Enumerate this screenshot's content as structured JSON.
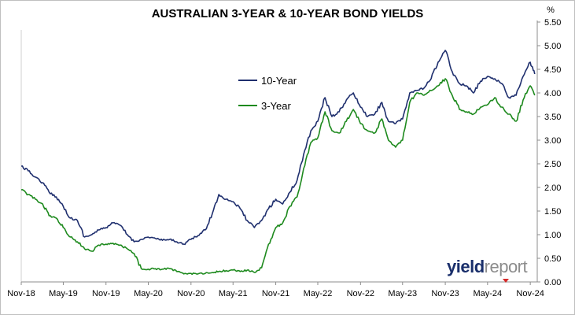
{
  "title": "AUSTRALIAN 3-YEAR & 10-YEAR BOND YIELDS",
  "branding": {
    "logo_part1": "yield",
    "logo_part2": "report"
  },
  "chart_data": {
    "type": "line",
    "title": "AUSTRALIAN 3-YEAR & 10-YEAR BOND YIELDS",
    "xlabel": "",
    "ylabel": "%",
    "xlim": [
      "2018-11-01",
      "2024-12-01"
    ],
    "ylim": [
      0,
      5.5
    ],
    "y_ticks": [
      "0.00",
      "0.50",
      "1.00",
      "1.50",
      "2.00",
      "2.50",
      "3.00",
      "3.50",
      "4.00",
      "4.50",
      "5.00",
      "5.50"
    ],
    "x_ticks": [
      "Nov-18",
      "May-19",
      "Nov-19",
      "May-20",
      "Nov-20",
      "May-21",
      "Nov-21",
      "May-22",
      "Nov-22",
      "May-23",
      "Nov-23",
      "May-24",
      "Nov-24"
    ],
    "x_tick_dates": [
      "2018-11-01",
      "2019-05-01",
      "2019-11-01",
      "2020-05-01",
      "2020-11-01",
      "2021-05-01",
      "2021-11-01",
      "2022-05-01",
      "2022-11-01",
      "2023-05-01",
      "2023-11-01",
      "2024-05-01",
      "2024-11-01"
    ],
    "y_axis_position": "right",
    "grid": false,
    "legend_position": "upper-middle",
    "series": [
      {
        "name": "10-Year",
        "color": "#1f2f6e",
        "x": [
          "2018-11-01",
          "2018-12-01",
          "2019-01-01",
          "2019-02-01",
          "2019-03-01",
          "2019-04-01",
          "2019-05-01",
          "2019-06-01",
          "2019-07-01",
          "2019-08-01",
          "2019-09-01",
          "2019-10-01",
          "2019-11-01",
          "2019-12-01",
          "2020-01-01",
          "2020-02-01",
          "2020-03-01",
          "2020-04-01",
          "2020-05-01",
          "2020-06-01",
          "2020-07-01",
          "2020-08-01",
          "2020-09-01",
          "2020-10-01",
          "2020-11-01",
          "2020-12-01",
          "2021-01-01",
          "2021-02-01",
          "2021-03-01",
          "2021-04-01",
          "2021-05-01",
          "2021-06-01",
          "2021-07-01",
          "2021-08-01",
          "2021-09-01",
          "2021-10-01",
          "2021-11-01",
          "2021-12-01",
          "2022-01-01",
          "2022-02-01",
          "2022-03-01",
          "2022-04-01",
          "2022-05-01",
          "2022-06-01",
          "2022-07-01",
          "2022-08-01",
          "2022-09-01",
          "2022-10-01",
          "2022-11-01",
          "2022-12-01",
          "2023-01-01",
          "2023-02-01",
          "2023-03-01",
          "2023-04-01",
          "2023-05-01",
          "2023-06-01",
          "2023-07-01",
          "2023-08-01",
          "2023-09-01",
          "2023-10-01",
          "2023-11-01",
          "2023-12-01",
          "2024-01-01",
          "2024-02-01",
          "2024-03-01",
          "2024-04-01",
          "2024-05-01",
          "2024-06-01",
          "2024-07-01",
          "2024-08-01",
          "2024-09-01",
          "2024-10-01",
          "2024-11-01",
          "2024-11-20"
        ],
        "values": [
          2.45,
          2.35,
          2.22,
          2.1,
          1.9,
          1.8,
          1.6,
          1.35,
          1.3,
          0.95,
          1.0,
          1.1,
          1.15,
          1.25,
          1.2,
          1.0,
          0.85,
          0.9,
          0.95,
          0.92,
          0.88,
          0.9,
          0.85,
          0.8,
          0.9,
          0.98,
          1.1,
          1.45,
          1.85,
          1.75,
          1.7,
          1.55,
          1.3,
          1.15,
          1.3,
          1.55,
          1.75,
          1.65,
          1.9,
          2.15,
          2.7,
          3.2,
          3.4,
          3.9,
          3.5,
          3.6,
          3.85,
          4.0,
          3.7,
          3.5,
          3.55,
          3.8,
          3.4,
          3.35,
          3.45,
          4.0,
          4.05,
          4.1,
          4.3,
          4.65,
          4.9,
          4.45,
          4.2,
          4.15,
          4.0,
          4.25,
          4.35,
          4.3,
          4.2,
          3.9,
          3.95,
          4.35,
          4.65,
          4.4
        ]
      },
      {
        "name": "3-Year",
        "color": "#1e8a1e",
        "x": [
          "2018-11-01",
          "2018-12-01",
          "2019-01-01",
          "2019-02-01",
          "2019-03-01",
          "2019-04-01",
          "2019-05-01",
          "2019-06-01",
          "2019-07-01",
          "2019-08-01",
          "2019-09-01",
          "2019-10-01",
          "2019-11-01",
          "2019-12-01",
          "2020-01-01",
          "2020-02-01",
          "2020-03-01",
          "2020-04-01",
          "2020-05-01",
          "2020-06-01",
          "2020-07-01",
          "2020-08-01",
          "2020-09-01",
          "2020-10-01",
          "2020-11-01",
          "2020-12-01",
          "2021-01-01",
          "2021-02-01",
          "2021-03-01",
          "2021-04-01",
          "2021-05-01",
          "2021-06-01",
          "2021-07-01",
          "2021-08-01",
          "2021-09-01",
          "2021-10-01",
          "2021-11-01",
          "2021-12-01",
          "2022-01-01",
          "2022-02-01",
          "2022-03-01",
          "2022-04-01",
          "2022-05-01",
          "2022-06-01",
          "2022-07-01",
          "2022-08-01",
          "2022-09-01",
          "2022-10-01",
          "2022-11-01",
          "2022-12-01",
          "2023-01-01",
          "2023-02-01",
          "2023-03-01",
          "2023-04-01",
          "2023-05-01",
          "2023-06-01",
          "2023-07-01",
          "2023-08-01",
          "2023-09-01",
          "2023-10-01",
          "2023-11-01",
          "2023-12-01",
          "2024-01-01",
          "2024-02-01",
          "2024-03-01",
          "2024-04-01",
          "2024-05-01",
          "2024-06-01",
          "2024-07-01",
          "2024-08-01",
          "2024-09-01",
          "2024-10-01",
          "2024-11-01",
          "2024-11-20"
        ],
        "values": [
          1.95,
          1.85,
          1.75,
          1.65,
          1.4,
          1.35,
          1.15,
          0.95,
          0.85,
          0.7,
          0.65,
          0.78,
          0.8,
          0.82,
          0.78,
          0.7,
          0.6,
          0.28,
          0.27,
          0.28,
          0.27,
          0.28,
          0.22,
          0.17,
          0.18,
          0.17,
          0.18,
          0.2,
          0.22,
          0.24,
          0.25,
          0.22,
          0.25,
          0.2,
          0.3,
          0.8,
          1.15,
          1.25,
          1.6,
          1.8,
          2.4,
          2.95,
          3.05,
          3.6,
          3.2,
          3.15,
          3.4,
          3.65,
          3.35,
          3.2,
          3.15,
          3.45,
          3.0,
          2.85,
          3.0,
          3.8,
          4.0,
          3.95,
          4.05,
          4.15,
          4.3,
          3.95,
          3.65,
          3.6,
          3.55,
          3.7,
          3.75,
          3.9,
          3.7,
          3.55,
          3.4,
          3.85,
          4.15,
          3.95
        ]
      }
    ]
  }
}
